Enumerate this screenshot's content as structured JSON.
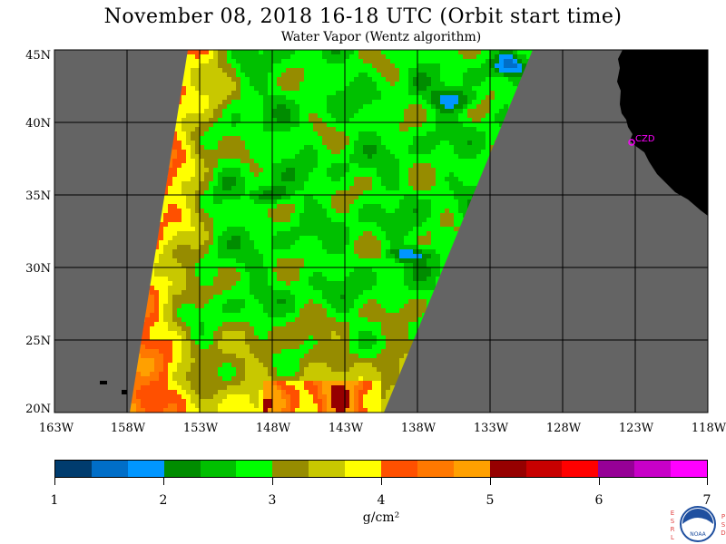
{
  "title": "November 08, 2018  16-18 UTC  (Orbit start time)",
  "subtitle": "Water Vapor (Wentz algorithm)",
  "map": {
    "lat_labels": [
      "45N",
      "40N",
      "35N",
      "30N",
      "25N",
      "20N"
    ],
    "lon_labels": [
      "163W",
      "158W",
      "153W",
      "148W",
      "143W",
      "138W",
      "133W",
      "128W",
      "123W",
      "118W"
    ],
    "station_label": "CZD",
    "land_color": "#000000",
    "no_data_color": "#646464",
    "station_color": "#ff00ff"
  },
  "colorbar": {
    "ticks": [
      "1",
      "2",
      "3",
      "4",
      "5",
      "6",
      "7"
    ],
    "units": "g/cm²",
    "colors": [
      "#003c6e",
      "#006ec8",
      "#0096ff",
      "#008c00",
      "#00c000",
      "#00ff00",
      "#968c00",
      "#c8c800",
      "#ffff00",
      "#ff5000",
      "#ff7800",
      "#ffa000",
      "#960000",
      "#c80000",
      "#ff0000",
      "#960096",
      "#c800c8",
      "#ff00ff"
    ]
  },
  "logo": {
    "left_letters": [
      "E",
      "S",
      "R",
      "L"
    ],
    "right_letters": [
      "P",
      "S",
      "D"
    ],
    "center_text": "NOAA"
  }
}
